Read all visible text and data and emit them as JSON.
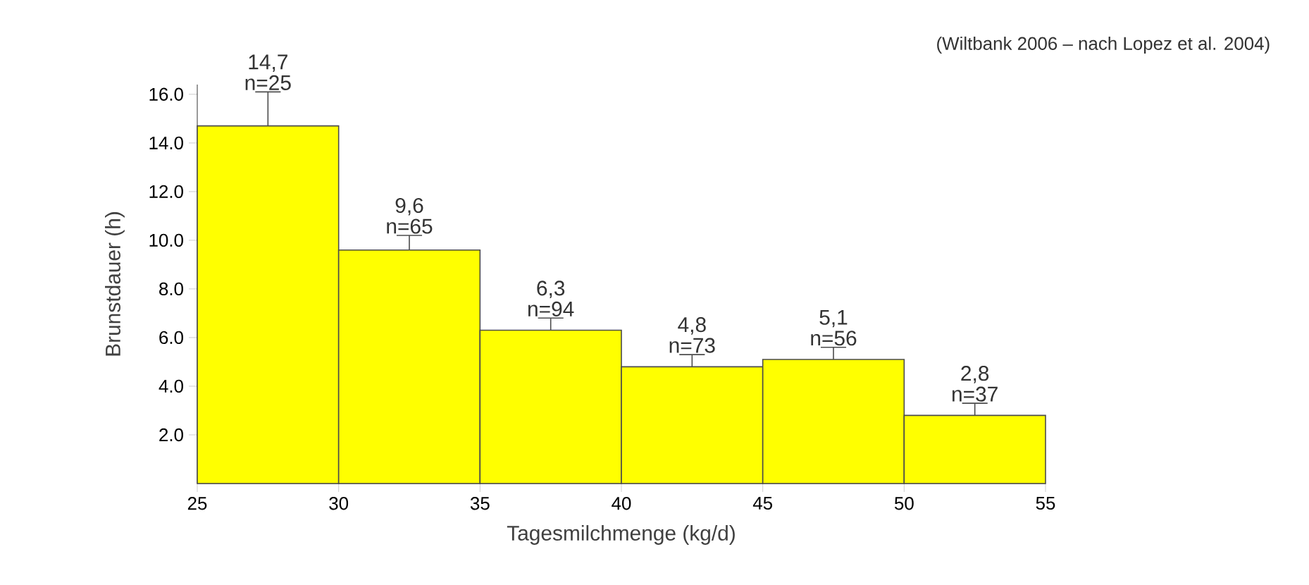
{
  "chart_data": {
    "type": "histogram",
    "xlabel": "Tagesmilchmenge (kg/d)",
    "ylabel": "Brunstdauer (h)",
    "bins": [
      25,
      30,
      35,
      40,
      45,
      50,
      55
    ],
    "values": [
      14.7,
      9.6,
      6.3,
      4.8,
      5.1,
      2.8
    ],
    "value_labels": [
      "14,7",
      "9,6",
      "6,3",
      "4,8",
      "5,1",
      "2,8"
    ],
    "errors": [
      [
        14.7,
        16.1
      ],
      [
        9.6,
        10.2
      ],
      [
        6.3,
        6.8
      ],
      [
        4.8,
        5.3
      ],
      [
        5.1,
        5.6
      ],
      [
        2.8,
        3.3
      ]
    ],
    "color": "#ffff00",
    "xlim": [
      25,
      55
    ],
    "xticks": [
      25,
      30,
      35,
      40,
      45,
      50,
      55
    ],
    "ylim": [
      0,
      16.4
    ],
    "yticks": [
      {
        "value": 2,
        "label": "2.0"
      },
      {
        "value": 4,
        "label": "4.0"
      },
      {
        "value": 6,
        "label": "6.0"
      },
      {
        "value": 8,
        "label": "8.0"
      },
      {
        "value": 10,
        "label": "10.0"
      },
      {
        "value": 12,
        "label": "12.0"
      },
      {
        "value": 14,
        "label": "14.0"
      },
      {
        "value": 16,
        "label": "16.0"
      }
    ],
    "annotations": [
      {
        "text": "n=25",
        "x": 27.5,
        "y": 14.7
      },
      {
        "text": "n=65",
        "x": 32.5,
        "y": 9.6
      },
      {
        "text": "n=94",
        "x": 37.5,
        "y": 6.3
      },
      {
        "text": "n=73",
        "x": 42.5,
        "y": 4.8
      },
      {
        "text": "n=56",
        "x": 47.5,
        "y": 5.1
      },
      {
        "text": "n=37",
        "x": 52.5,
        "y": 2.8
      },
      "(Wiltbank 2006 – nach Lopez et al. 2004)"
    ]
  }
}
